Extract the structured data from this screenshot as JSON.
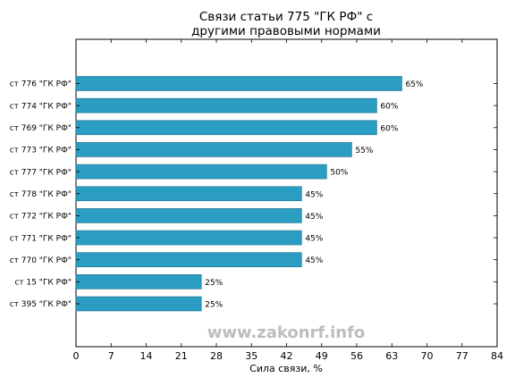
{
  "chart_data": {
    "type": "bar",
    "orientation": "horizontal",
    "title_lines": [
      "Связи статьи 775 \"ГК РФ\" с",
      "другими правовыми нормами"
    ],
    "xlabel": "Сила связи, %",
    "ylabel": "",
    "xlim": [
      0,
      84
    ],
    "xticks": [
      "0",
      "7",
      "14",
      "21",
      "28",
      "35",
      "42",
      "49",
      "56",
      "63",
      "70",
      "77",
      "84"
    ],
    "categories": [
      "ст 776 \"ГК РФ\"",
      "ст 774 \"ГК РФ\"",
      "ст 769 \"ГК РФ\"",
      "ст 773 \"ГК РФ\"",
      "ст 777 \"ГК РФ\"",
      "ст 778 \"ГК РФ\"",
      "ст 772 \"ГК РФ\"",
      "ст 771 \"ГК РФ\"",
      "ст 770 \"ГК РФ\"",
      "ст 15 \"ГК РФ\"",
      "ст 395 \"ГК РФ\""
    ],
    "values": [
      65,
      60,
      60,
      55,
      50,
      45,
      45,
      45,
      45,
      25,
      25
    ],
    "value_labels": [
      "65%",
      "60%",
      "60%",
      "55%",
      "50%",
      "45%",
      "45%",
      "45%",
      "45%",
      "25%",
      "25%"
    ],
    "bar_color": "#2b9dc2",
    "bar_edge_color": "#1f6f8a",
    "grid": false,
    "legend": "none",
    "watermark": "www.zakonrf.info"
  }
}
